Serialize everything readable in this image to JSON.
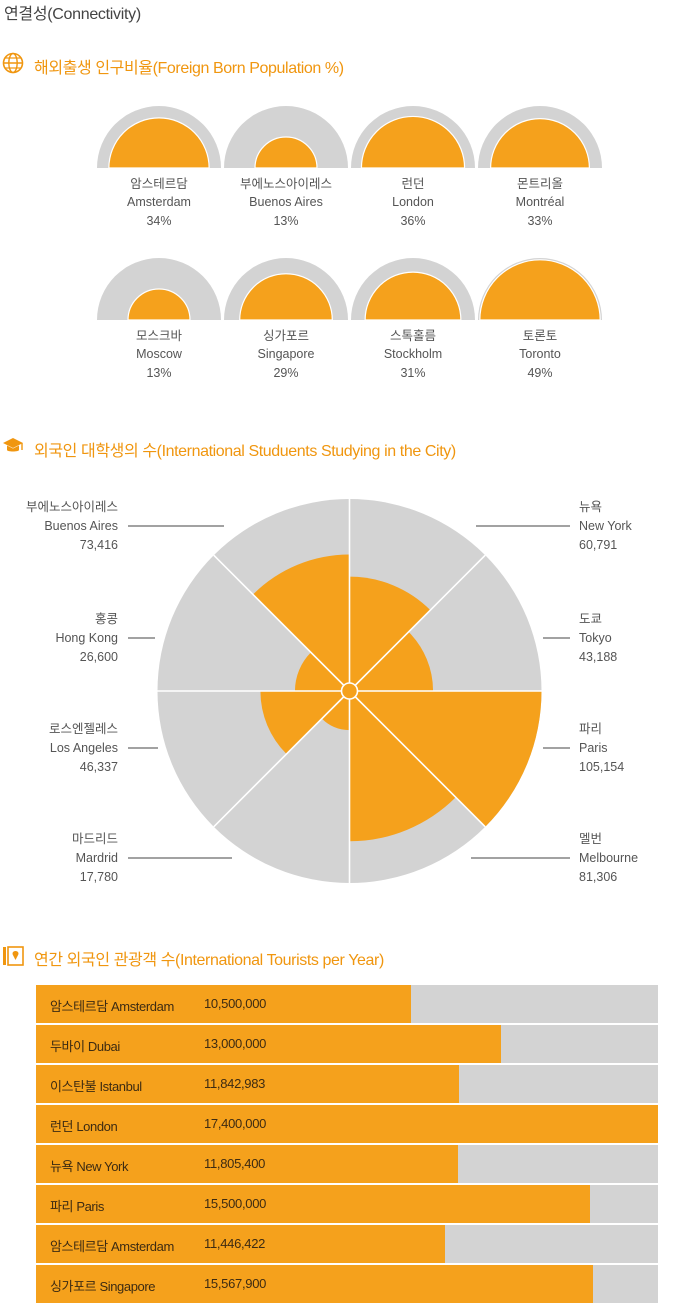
{
  "page": {
    "title": "연결성(Connectivity)"
  },
  "colors": {
    "accent": "#f0960f",
    "fill": "#f5a11c",
    "track": "#d3d3d3"
  },
  "sections": {
    "foreign": {
      "title": "해외출생 인구비율(Foreign Born Population %)",
      "icon": "globe-icon"
    },
    "students": {
      "title": "외국인 대학생의 수(International Studuents Studying in the City)",
      "icon": "graduation-cap-icon"
    },
    "tourists": {
      "title": "연간 외국인 관광객 수(International Tourists per Year)",
      "icon": "map-pin-icon"
    }
  },
  "chart_data": [
    {
      "type": "area",
      "title": "해외출생 인구비율(Foreign Born Population %)",
      "items": [
        {
          "ko": "암스테르담",
          "en": "Amsterdam",
          "value": 34,
          "label": "34%"
        },
        {
          "ko": "부에노스아이레스",
          "en": "Buenos Aires",
          "value": 13,
          "label": "13%"
        },
        {
          "ko": "런던",
          "en": "London",
          "value": 36,
          "label": "36%"
        },
        {
          "ko": "몬트리올",
          "en": "Montréal",
          "value": 33,
          "label": "33%"
        },
        {
          "ko": "모스크바",
          "en": "Moscow",
          "value": 13,
          "label": "13%"
        },
        {
          "ko": "싱가포르",
          "en": "Singapore",
          "value": 29,
          "label": "29%"
        },
        {
          "ko": "스톡홀름",
          "en": "Stockholm",
          "value": 31,
          "label": "31%"
        },
        {
          "ko": "토론토",
          "en": "Toronto",
          "value": 49,
          "label": "49%"
        }
      ]
    },
    {
      "type": "pie",
      "title": "외국인 대학생의 수(International Studuents Studying in the City)",
      "max": 105154,
      "items": [
        {
          "ko": "뉴욕",
          "en": "New York",
          "value": 60791,
          "label": "60,791"
        },
        {
          "ko": "도쿄",
          "en": "Tokyo",
          "value": 43188,
          "label": "43,188"
        },
        {
          "ko": "파리",
          "en": "Paris",
          "value": 105154,
          "label": "105,154"
        },
        {
          "ko": "멜번",
          "en": "Melbourne",
          "value": 81306,
          "label": "81,306"
        },
        {
          "ko": "마드리드",
          "en": "Mardrid",
          "value": 17780,
          "label": "17,780"
        },
        {
          "ko": "로스엔젤레스",
          "en": "Los Angeles",
          "value": 46337,
          "label": "46,337"
        },
        {
          "ko": "홍콩",
          "en": "Hong Kong",
          "value": 26600,
          "label": "26,600"
        },
        {
          "ko": "부에노스아이레스",
          "en": "Buenos Aires",
          "value": 73416,
          "label": "73,416"
        }
      ]
    },
    {
      "type": "bar",
      "title": "연간 외국인 관광객 수(International Tourists per Year)",
      "max": 17400000,
      "items": [
        {
          "name": "암스테르담 Amsterdam",
          "value": 10500000,
          "label": "10,500,000"
        },
        {
          "name": "두바이 Dubai",
          "value": 13000000,
          "label": "13,000,000"
        },
        {
          "name": "이스탄불 Istanbul",
          "value": 11842983,
          "label": "11,842,983"
        },
        {
          "name": "런던 London",
          "value": 17400000,
          "label": "17,400,000"
        },
        {
          "name": "뉴욕 New York",
          "value": 11805400,
          "label": "11,805,400"
        },
        {
          "name": "파리 Paris",
          "value": 15500000,
          "label": "15,500,000"
        },
        {
          "name": "암스테르담 Amsterdam",
          "value": 11446422,
          "label": "11,446,422"
        },
        {
          "name": "싱가포르 Singapore",
          "value": 15567900,
          "label": "15,567,900"
        }
      ]
    }
  ]
}
